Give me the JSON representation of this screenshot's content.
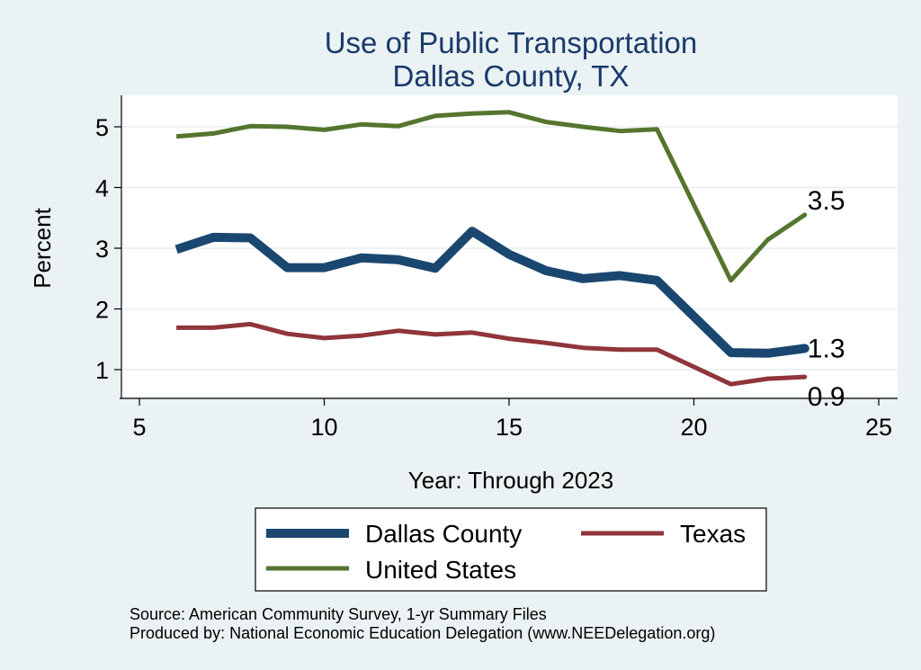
{
  "chart_data": {
    "type": "line",
    "title": "Use of Public Transportation",
    "subtitle": "Dallas County, TX",
    "xlabel": "Year: Through 2023",
    "ylabel": "Percent",
    "xlim": [
      5,
      25
    ],
    "ylim": [
      0.5,
      5.5
    ],
    "xticks": [
      5,
      10,
      15,
      20,
      25
    ],
    "yticks": [
      1,
      2,
      3,
      4,
      5
    ],
    "grid": true,
    "legend_position": "bottom",
    "x": [
      6,
      7,
      8,
      9,
      10,
      11,
      12,
      13,
      14,
      15,
      16,
      17,
      18,
      19,
      21,
      22,
      23
    ],
    "series": [
      {
        "name": "Dallas County",
        "color": "#1a476f",
        "values": [
          2.98,
          3.18,
          3.17,
          2.68,
          2.68,
          2.84,
          2.81,
          2.67,
          3.28,
          2.9,
          2.63,
          2.5,
          2.55,
          2.47,
          1.28,
          1.27,
          1.35
        ],
        "end_label": "1.3"
      },
      {
        "name": "Texas",
        "color": "#90353b",
        "values": [
          1.69,
          1.69,
          1.75,
          1.59,
          1.52,
          1.56,
          1.64,
          1.58,
          1.61,
          1.51,
          1.44,
          1.36,
          1.33,
          1.33,
          0.76,
          0.85,
          0.88
        ],
        "end_label": "0.9"
      },
      {
        "name": "United States",
        "color": "#55752f",
        "values": [
          4.84,
          4.89,
          5.01,
          5.0,
          4.95,
          5.04,
          5.01,
          5.18,
          5.22,
          5.24,
          5.08,
          5.0,
          4.93,
          4.96,
          2.47,
          3.14,
          3.55
        ],
        "end_label": "3.5"
      }
    ],
    "notes": [
      "Source: American Community Survey, 1-yr Summary Files",
      "Produced by: National Economic Education Delegation (www.NEEDelegation.org)"
    ]
  }
}
